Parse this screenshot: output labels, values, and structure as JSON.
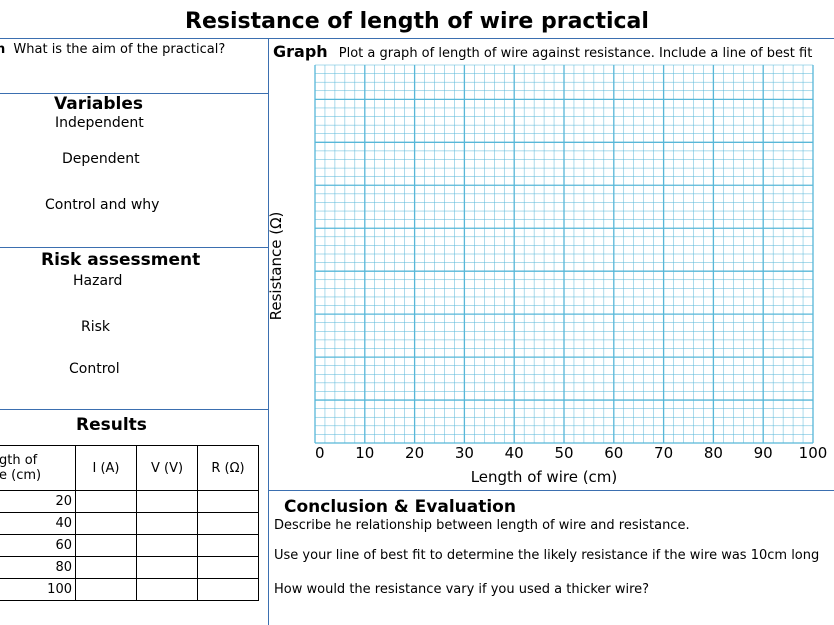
{
  "title": "Resistance of length of wire practical",
  "aim": {
    "question": "What is the aim of the practical?",
    "prefix": "n"
  },
  "variables": {
    "title": "Variables",
    "independent": "Independent",
    "dependent": "Dependent",
    "control": "Control and why"
  },
  "risk": {
    "title": "Risk assessment",
    "hazard": "Hazard",
    "risk": "Risk",
    "control": "Control"
  },
  "results": {
    "title": "Results",
    "headers": [
      "gth of\ne (cm)",
      "I (A)",
      "V (V)",
      "R (Ω)"
    ],
    "length_header_line1": "gth of",
    "length_header_line2": "e (cm)",
    "rows": [
      "20",
      "40",
      "60",
      "80",
      "100"
    ]
  },
  "graph": {
    "label": "Graph",
    "instruction": "Plot a graph of length of wire against resistance. Include a line of best fit",
    "grid_color": "#57b7d8"
  },
  "chart_data": {
    "type": "scatter",
    "xlabel": "Length of wire (cm)",
    "ylabel": "Resistance (Ω)",
    "x_ticks": [
      "0",
      "10",
      "20",
      "30",
      "40",
      "50",
      "60",
      "70",
      "80",
      "90",
      "100"
    ],
    "xlim": [
      0,
      100
    ],
    "grid": true,
    "points": []
  },
  "conclusion": {
    "title": "Conclusion & Evaluation",
    "q1": "Describe he relationship between length of wire and resistance.",
    "q2": "Use your line of best fit to determine the likely resistance if the wire was 10cm long",
    "q3": "How would the resistance vary if you used a thicker wire?"
  }
}
